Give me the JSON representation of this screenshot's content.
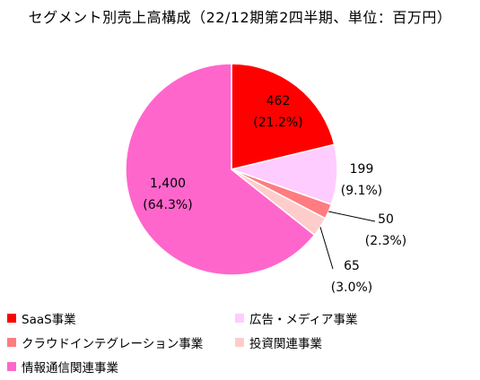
{
  "chart_data": {
    "type": "pie",
    "title": "セグメント別売上高構成（22/12期第2四半期、単位：百万円）",
    "slices": [
      {
        "name": "SaaS事業",
        "value": 462,
        "percent": "21.2%",
        "color": "#ff0000"
      },
      {
        "name": "広告・メディア事業",
        "value": 199,
        "percent": "9.1%",
        "color": "#ffccff"
      },
      {
        "name": "クラウドインテグレーション事業",
        "value": 50,
        "percent": "2.3%",
        "color": "#ff7c80"
      },
      {
        "name": "投資関連事業",
        "value": 65,
        "percent": "3.0%",
        "color": "#ffcccc"
      },
      {
        "name": "情報通信関連事業",
        "value": 1400,
        "percent": "64.3%",
        "color": "#ff66cc"
      }
    ],
    "data_labels": [
      {
        "value": "462",
        "percent": "(21.2%)"
      },
      {
        "value": "199",
        "percent": "(9.1%)"
      },
      {
        "value": "50",
        "percent": "(2.3%)"
      },
      {
        "value": "65",
        "percent": "(3.0%)"
      },
      {
        "value": "1,400",
        "percent": "(64.3%)"
      }
    ],
    "legend_position": "bottom"
  }
}
